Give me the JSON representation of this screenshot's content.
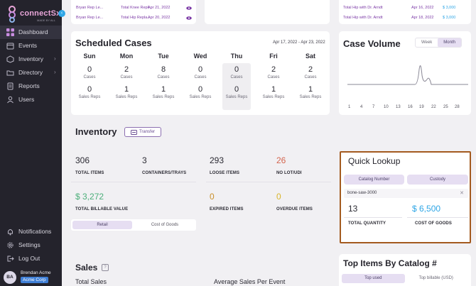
{
  "sidebar": {
    "brand": "connectSx",
    "brand_tag": "MADE BY ALL",
    "items": [
      {
        "label": "Dashboard",
        "icon": "grid-icon",
        "active": true
      },
      {
        "label": "Events",
        "icon": "calendar-icon"
      },
      {
        "label": "Inventory",
        "icon": "box-icon",
        "chevron": true
      },
      {
        "label": "Directory",
        "icon": "folder-icon",
        "chevron": true
      },
      {
        "label": "Reports",
        "icon": "report-icon"
      },
      {
        "label": "Users",
        "icon": "users-icon"
      }
    ],
    "bottom_items": [
      {
        "label": "Notifications",
        "icon": "bell-icon"
      },
      {
        "label": "Settings",
        "icon": "gear-icon"
      },
      {
        "label": "Log Out",
        "icon": "logout-icon"
      }
    ],
    "user": {
      "initials": "BA",
      "name": "Brendan Acme",
      "company": "Acme Corp"
    }
  },
  "recent_cases": [
    {
      "rep": "Bryan Rep Le...",
      "case": "Total Knee Repl...",
      "date": "Apr 21, 2022"
    },
    {
      "rep": "Bryan Rep Le...",
      "case": "Total Hip Repla...",
      "date": "Apr 20, 2022"
    }
  ],
  "right_cases": [
    {
      "case": "Total Hip with Dr. Arndt",
      "date": "Apr 16, 2022",
      "amount": "$ 3,000"
    },
    {
      "case": "Total Hip with Dr. Arndt",
      "date": "Apr 18, 2022",
      "amount": "$ 3,000"
    }
  ],
  "scheduled": {
    "title": "Scheduled Cases",
    "range": "Apr 17, 2022 - Apr 23, 2022",
    "cases_label": "Cases",
    "reps_label": "Sales Reps",
    "days": [
      {
        "name": "Sun",
        "cases": "0",
        "reps": "0"
      },
      {
        "name": "Mon",
        "cases": "2",
        "reps": "1"
      },
      {
        "name": "Tue",
        "cases": "8",
        "reps": "1"
      },
      {
        "name": "Wed",
        "cases": "0",
        "reps": "0"
      },
      {
        "name": "Thu",
        "cases": "0",
        "reps": "0"
      },
      {
        "name": "Fri",
        "cases": "2",
        "reps": "1"
      },
      {
        "name": "Sat",
        "cases": "2",
        "reps": "1"
      }
    ]
  },
  "case_volume": {
    "title": "Case Volume",
    "toggle": [
      "Week",
      "Month"
    ],
    "active": "Month",
    "ticks": [
      "1",
      "4",
      "7",
      "10",
      "13",
      "16",
      "19",
      "22",
      "25",
      "28"
    ]
  },
  "inventory": {
    "title": "Inventory",
    "transfer_label": "Transfer",
    "stats": [
      {
        "value": "306",
        "label": "TOTAL ITEMS",
        "color": "#2b2a33"
      },
      {
        "value": "3",
        "label": "CONTAINERS/TRAYS",
        "color": "#2b2a33"
      },
      {
        "value": "293",
        "label": "LOOSE ITEMS",
        "color": "#2b2a33"
      },
      {
        "value": "26",
        "label": "NO LOT/UDI",
        "color": "#d4654f"
      },
      {
        "value": "$ 3,272",
        "label": "TOTAL BILLABLE VALUE",
        "color": "#4caf7a"
      },
      {
        "value": "0",
        "label": "EXPIRED ITEMS",
        "color": "#c9902a"
      },
      {
        "value": "0",
        "label": "OVERDUE ITEMS",
        "color": "#d9b52b"
      }
    ],
    "toggle": [
      "Retail",
      "Cost of Goods"
    ]
  },
  "quick_lookup": {
    "title": "Quick Lookup",
    "tabs": [
      "Catalog Number",
      "Custody"
    ],
    "search_value": "bone-saw-3000",
    "quantity": "13",
    "quantity_label": "TOTAL QUANTITY",
    "cost": "$ 6,500",
    "cost_label": "COST OF GOODS"
  },
  "sales": {
    "title": "Sales",
    "total_label": "Total Sales",
    "avg_label": "Average Sales Per Event"
  },
  "top_items": {
    "title": "Top Items By Catalog #",
    "toggle": [
      "Top used",
      "Top billable (USD)"
    ]
  }
}
